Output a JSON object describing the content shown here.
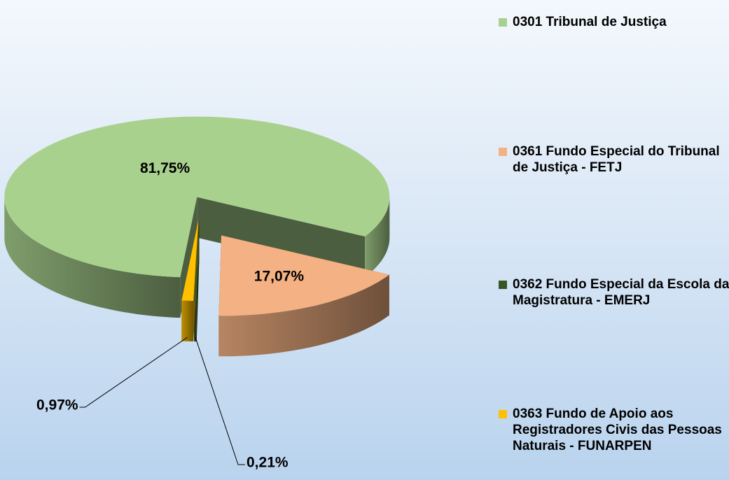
{
  "chart_data": {
    "type": "pie",
    "categories": [
      "0301 Tribunal de Justiça",
      "0361 Fundo Especial do Tribunal de Justiça - FETJ",
      "0362 Fundo Especial da Escola da Magistratura - EMERJ",
      "0363 Fundo de Apoio aos Registradores Civis das Pessoas Naturais - FUNARPEN"
    ],
    "values": [
      81.75,
      17.07,
      0.21,
      0.97
    ],
    "value_labels": [
      "81,75%",
      "17,07%",
      "0,21%",
      "0,97%"
    ],
    "colors": [
      "#a9d18e",
      "#f4b183",
      "#375623",
      "#ffc000"
    ],
    "legend": "right"
  }
}
